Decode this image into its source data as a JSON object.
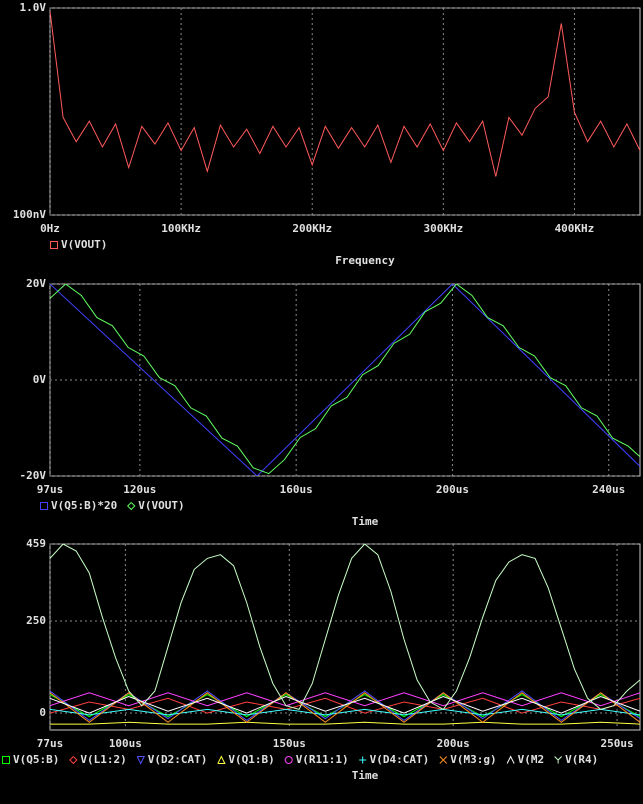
{
  "chart_data": [
    {
      "type": "line",
      "log_y": true,
      "xlabel": "Frequency",
      "grid": true,
      "xlim": [
        0,
        450000
      ],
      "ylim": [
        1e-07,
        1
      ],
      "xticks": [
        {
          "value": 0,
          "label": "0Hz"
        },
        {
          "value": 100000,
          "label": "100KHz"
        },
        {
          "value": 200000,
          "label": "200KHz"
        },
        {
          "value": 300000,
          "label": "300KHz"
        },
        {
          "value": 400000,
          "label": "400KHz"
        }
      ],
      "yticks": [
        {
          "value": 1,
          "label": "1.0V"
        },
        {
          "value": 1e-07,
          "label": "100nV"
        }
      ],
      "series": [
        {
          "name": "V(VOUT)",
          "color": "#ff5a5a",
          "marker": "square",
          "x": [
            0,
            10000,
            20000,
            30000,
            40000,
            50000,
            60000,
            70000,
            80000,
            90000,
            100000,
            110000,
            120000,
            130000,
            140000,
            150000,
            160000,
            170000,
            180000,
            190000,
            200000,
            210000,
            220000,
            230000,
            240000,
            250000,
            260000,
            270000,
            280000,
            290000,
            300000,
            310000,
            320000,
            330000,
            340000,
            350000,
            360000,
            370000,
            380000,
            390000,
            400000,
            410000,
            420000,
            430000,
            440000,
            450000
          ],
          "values": [
            0.8,
            0.0002,
            3e-05,
            0.00015,
            2e-05,
            0.00012,
            4e-06,
            0.0001,
            2.5e-05,
            0.00013,
            1.5e-05,
            9e-05,
            3e-06,
            0.00011,
            2e-05,
            8e-05,
            1.2e-05,
            0.0001,
            2e-05,
            9e-05,
            5e-06,
            0.0001,
            1.8e-05,
            9e-05,
            2e-05,
            0.00011,
            6e-06,
            0.0001,
            2e-05,
            0.00012,
            1.5e-05,
            0.00013,
            3e-05,
            0.00015,
            2e-06,
            0.0002,
            5e-05,
            0.0004,
            0.001,
            0.3,
            0.0003,
            3e-05,
            0.00015,
            2e-05,
            0.00012,
            1.5e-05
          ]
        }
      ]
    },
    {
      "type": "line",
      "xlabel": "Time",
      "grid": true,
      "xlim": [
        97,
        248
      ],
      "ylim": [
        -20,
        20
      ],
      "xticks": [
        {
          "value": 97,
          "label": "97us"
        },
        {
          "value": 120,
          "label": "120us"
        },
        {
          "value": 160,
          "label": "160us"
        },
        {
          "value": 200,
          "label": "200us"
        },
        {
          "value": 240,
          "label": "240us"
        }
      ],
      "yticks": [
        {
          "value": 20,
          "label": "20V"
        },
        {
          "value": 0,
          "label": "0V"
        },
        {
          "value": -20,
          "label": "-20V"
        }
      ],
      "series": [
        {
          "name": "V(Q5:B)*20",
          "color": "#4040ff",
          "marker": "square",
          "x": [
            97,
            150,
            200,
            248
          ],
          "values": [
            20,
            -20,
            20,
            -18
          ]
        },
        {
          "name": "V(VOUT)",
          "color": "#60ff60",
          "marker": "diamond",
          "x": [
            97,
            101,
            105,
            109,
            113,
            117,
            121,
            125,
            129,
            133,
            137,
            141,
            145,
            149,
            153,
            157,
            161,
            165,
            169,
            173,
            177,
            181,
            185,
            189,
            193,
            197,
            201,
            205,
            209,
            213,
            217,
            221,
            225,
            229,
            233,
            237,
            241,
            245,
            248
          ],
          "values": [
            17,
            20,
            17.6,
            13,
            11.3,
            6.8,
            5,
            0.5,
            -1.2,
            -5.8,
            -7.5,
            -12.1,
            -13.8,
            -18.3,
            -19.5,
            -16.6,
            -12,
            -10.1,
            -5.4,
            -3.6,
            1.1,
            3,
            7.6,
            9.5,
            14.2,
            16,
            20,
            17.6,
            13,
            11.3,
            6.8,
            5,
            0.5,
            -1.2,
            -5.8,
            -7.5,
            -12.1,
            -13.8,
            -16
          ]
        }
      ]
    },
    {
      "type": "line",
      "xlabel": "Time",
      "grid": true,
      "xlim": [
        77,
        257
      ],
      "ylim": [
        -46,
        459
      ],
      "xticks": [
        {
          "value": 77,
          "label": "77us"
        },
        {
          "value": 100,
          "label": "100us"
        },
        {
          "value": 150,
          "label": "150us"
        },
        {
          "value": 200,
          "label": "200us"
        },
        {
          "value": 250,
          "label": "250us"
        }
      ],
      "yticks": [
        459,
        250,
        0
      ],
      "series": [
        {
          "name": "V(Q5:B)",
          "color": "#00ff00",
          "marker": "square",
          "x": [
            77,
            89,
            101,
            113,
            125,
            137,
            149,
            161,
            173,
            185,
            197,
            209,
            221,
            233,
            245,
            257
          ],
          "values": [
            50,
            -10,
            50,
            -10,
            50,
            -10,
            50,
            -10,
            50,
            -10,
            50,
            -10,
            50,
            -10,
            50,
            -10
          ]
        },
        {
          "name": "V(L1:2)",
          "color": "#ff4040",
          "marker": "diamond",
          "x": [
            77,
            89,
            101,
            113,
            125,
            137,
            149,
            161,
            173,
            185,
            197,
            209,
            221,
            233,
            245,
            257
          ],
          "values": [
            0,
            30,
            10,
            40,
            0,
            30,
            10,
            40,
            0,
            30,
            10,
            40,
            0,
            30,
            10,
            40
          ]
        },
        {
          "name": "V(D2:CAT)",
          "color": "#5050ff",
          "marker": "triangle-down",
          "x": [
            77,
            89,
            101,
            113,
            125,
            137,
            149,
            161,
            173,
            185,
            197,
            209,
            221,
            233,
            245,
            257
          ],
          "values": [
            60,
            -20,
            55,
            -15,
            60,
            -20,
            55,
            -15,
            60,
            -20,
            55,
            -15,
            60,
            -20,
            55,
            -15
          ]
        },
        {
          "name": "V(Q1:B)",
          "color": "#ffff40",
          "marker": "triangle",
          "x": [
            77,
            89,
            101,
            113,
            125,
            137,
            149,
            161,
            173,
            185,
            197,
            209,
            221,
            233,
            245,
            257
          ],
          "values": [
            -30,
            -30,
            -25,
            -30,
            -30,
            -25,
            -30,
            -30,
            -25,
            -30,
            -30,
            -25,
            -30,
            -30,
            -25,
            -30
          ]
        },
        {
          "name": "V(R11:1)",
          "color": "#ff40ff",
          "marker": "circle",
          "x": [
            77,
            89,
            101,
            113,
            125,
            137,
            149,
            161,
            173,
            185,
            197,
            209,
            221,
            233,
            245,
            257
          ],
          "values": [
            20,
            55,
            20,
            55,
            20,
            55,
            20,
            55,
            20,
            55,
            20,
            55,
            20,
            55,
            20,
            55
          ]
        },
        {
          "name": "V(D4:CAT)",
          "color": "#40ffff",
          "marker": "plus",
          "x": [
            77,
            89,
            101,
            113,
            125,
            137,
            149,
            161,
            173,
            185,
            197,
            209,
            221,
            233,
            245,
            257
          ],
          "values": [
            10,
            -5,
            10,
            -5,
            10,
            -5,
            10,
            -5,
            10,
            -5,
            10,
            -5,
            10,
            -5,
            10,
            -5
          ]
        },
        {
          "name": "V(M3:g)",
          "color": "#ff9020",
          "marker": "x",
          "x": [
            77,
            89,
            101,
            113,
            125,
            137,
            149,
            161,
            173,
            185,
            197,
            209,
            221,
            233,
            245,
            257
          ],
          "values": [
            55,
            -25,
            55,
            -25,
            55,
            -25,
            55,
            -25,
            55,
            -25,
            55,
            -25,
            55,
            -25,
            55,
            -25
          ]
        },
        {
          "name": "V(M2",
          "color": "#ffffff",
          "marker": "caret",
          "x": [
            77,
            89,
            101,
            113,
            125,
            137,
            149,
            161,
            173,
            185,
            197,
            209,
            221,
            233,
            245,
            257
          ],
          "values": [
            40,
            0,
            45,
            5,
            40,
            0,
            45,
            5,
            40,
            0,
            45,
            5,
            40,
            0,
            45,
            5
          ]
        },
        {
          "name": "V(R4)",
          "color": "#c8ffc8",
          "marker": "y",
          "x": [
            77,
            81,
            85,
            89,
            93,
            97,
            101,
            105,
            109,
            113,
            117,
            121,
            125,
            129,
            133,
            137,
            141,
            145,
            149,
            153,
            157,
            161,
            165,
            169,
            173,
            177,
            181,
            185,
            189,
            193,
            197,
            201,
            205,
            209,
            213,
            217,
            221,
            225,
            229,
            233,
            237,
            241,
            245,
            249,
            253,
            257
          ],
          "values": [
            420,
            459,
            440,
            380,
            260,
            150,
            60,
            20,
            60,
            180,
            300,
            390,
            420,
            430,
            400,
            300,
            180,
            80,
            20,
            10,
            80,
            200,
            320,
            420,
            459,
            430,
            330,
            200,
            90,
            30,
            10,
            60,
            150,
            260,
            360,
            410,
            430,
            420,
            340,
            230,
            120,
            40,
            10,
            20,
            60,
            90
          ]
        }
      ]
    }
  ]
}
